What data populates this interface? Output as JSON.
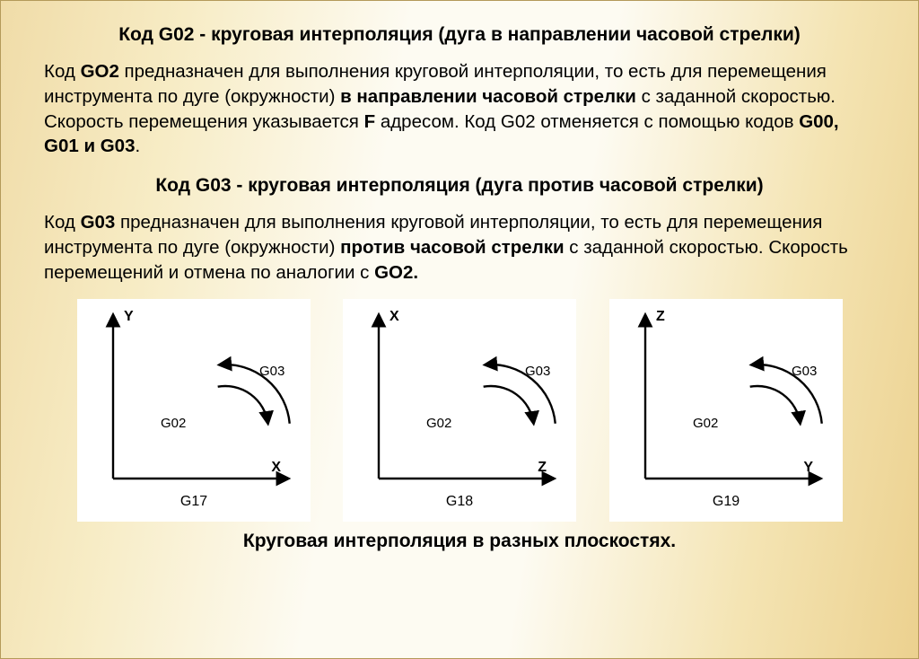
{
  "heading1": "Код G02 - круговая интерполяция (дуга в направлении часовой стрелки)",
  "p1_a": "Код ",
  "p1_b": "GO2",
  "p1_c": " предназначен для выполнения круговой интерполяции, то есть для перемещения инструмента по дуге (окружности) ",
  "p1_d": "в направлении часовой стрелки",
  "p1_e": " с заданной скоростью. Скорость перемещения указывается ",
  "p1_f": "F",
  "p1_g": " адресом. Код G02 отменяется с помощью кодов ",
  "p1_h": "G00, G01 и G03",
  "p1_i": ".",
  "heading2": "Код G03 - круговая интерполяция (дуга против часовой стрелки)",
  "p2_a": "Код ",
  "p2_b": "G03",
  "p2_c": " предназначен для выполнения круговой интерполяции, то есть для перемещения инструмента по дуге (окружности) ",
  "p2_d": "против часовой стрелки",
  "p2_e": " с заданной скоростью. Скорость перемещений и отмена по аналогии с ",
  "p2_f": "GO2.",
  "caption": "Круговая интерполяция в разных плоскостях.",
  "diagrams": {
    "common": {
      "background": "#ffffff",
      "stroke": "#000000",
      "stroke_width": 2.4,
      "axis_fontsize": 16,
      "label_fontsize": 15,
      "label_fontfamily": "Arial",
      "arc_label_g03": "G03",
      "arc_label_g02": "G02"
    },
    "panels": [
      {
        "y_axis": "Y",
        "x_axis": "X",
        "bottom_label": "G17"
      },
      {
        "y_axis": "X",
        "x_axis": "Z",
        "bottom_label": "G18"
      },
      {
        "y_axis": "Z",
        "x_axis": "Y",
        "bottom_label": "G19"
      }
    ]
  }
}
